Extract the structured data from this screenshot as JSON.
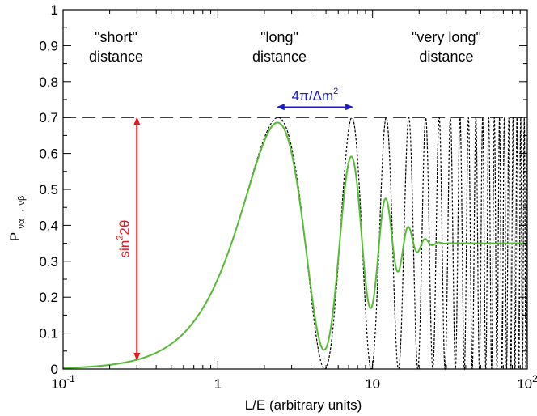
{
  "chart_data": {
    "type": "line",
    "xscale": "log",
    "xlim": [
      0.1,
      100
    ],
    "ylim": [
      0,
      1
    ],
    "xlabel": "L/E (arbitrary units)",
    "ylabel": "P",
    "ylabel_subscript": "να → νβ",
    "x_ticks": [
      {
        "value": 0.1,
        "base": "10",
        "exp": "-1"
      },
      {
        "value": 1,
        "base": "1",
        "exp": ""
      },
      {
        "value": 10,
        "base": "10",
        "exp": ""
      },
      {
        "value": 100,
        "base": "10",
        "exp": "2"
      }
    ],
    "y_ticks": [
      "0",
      "0.1",
      "0.2",
      "0.3",
      "0.4",
      "0.5",
      "0.6",
      "0.7",
      "0.8",
      "0.9",
      "1"
    ],
    "amplitude_sin2_2theta": 0.7,
    "oscillation_period_L_over_E": 4.9,
    "series": [
      {
        "style": "dashed",
        "color": "#000000",
        "formula": "0.7*sin^2(pi*x/4.9)"
      },
      {
        "style": "solid",
        "color": "#55bb33",
        "formula": "averaged over energy resolution",
        "asymptote": 0.35
      }
    ],
    "region_labels": [
      {
        "line1": "\"short\"",
        "line2": "distance",
        "x": 0.22
      },
      {
        "line1": "\"long\"",
        "line2": "distance",
        "x": 2.5
      },
      {
        "line1": "\"very long\"",
        "line2": "distance",
        "x": 30
      }
    ],
    "amplitude_line_y": 0.7,
    "period_annotation": {
      "text": "4π/Δm",
      "sup": "2",
      "color": "#1a1acc",
      "x_from": 2.45,
      "x_to": 7.35
    },
    "amplitude_annotation": {
      "text": "sin",
      "sup": "2",
      "tail": "2θ",
      "color": "#e8141c",
      "x": 0.3,
      "y_from": 0.025,
      "y_to": 0.7
    }
  }
}
